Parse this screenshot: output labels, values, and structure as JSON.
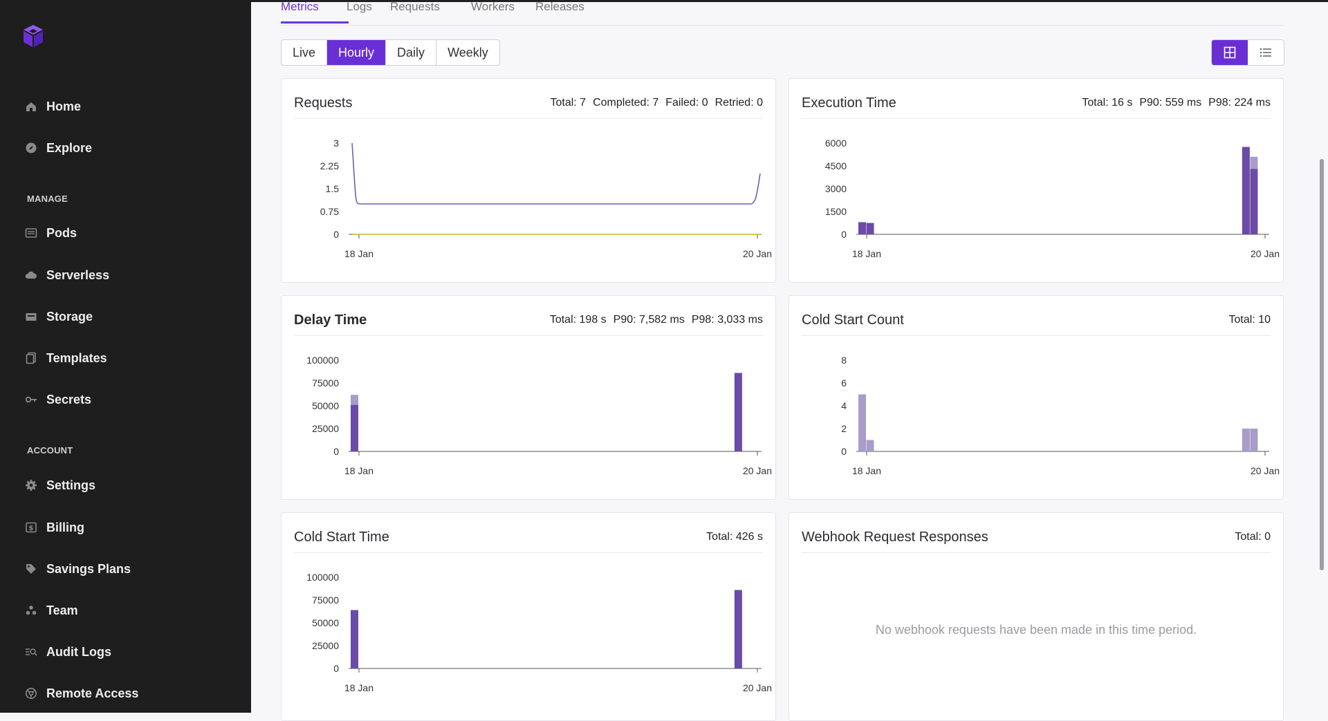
{
  "colors": {
    "accent": "#6a2fd4",
    "bar": "#6b4aa8",
    "bar_light": "#a89cc8",
    "line_requests": "#6b5fb5",
    "line_failed": "#c9b21d"
  },
  "sidebar": {
    "logo_icon": "cube-logo-icon",
    "top_items": [
      {
        "label": "Home",
        "icon": "home-icon"
      },
      {
        "label": "Explore",
        "icon": "compass-icon"
      }
    ],
    "manage_label": "MANAGE",
    "manage_items": [
      {
        "label": "Pods",
        "icon": "pods-icon"
      },
      {
        "label": "Serverless",
        "icon": "cloud-icon"
      },
      {
        "label": "Storage",
        "icon": "storage-icon"
      },
      {
        "label": "Templates",
        "icon": "templates-icon"
      },
      {
        "label": "Secrets",
        "icon": "key-icon"
      }
    ],
    "account_label": "ACCOUNT",
    "account_items": [
      {
        "label": "Settings",
        "icon": "gear-icon"
      },
      {
        "label": "Billing",
        "icon": "billing-icon"
      },
      {
        "label": "Savings Plans",
        "icon": "tag-icon"
      },
      {
        "label": "Team",
        "icon": "team-icon"
      },
      {
        "label": "Audit Logs",
        "icon": "audit-logs-icon"
      },
      {
        "label": "Remote Access",
        "icon": "remote-access-icon"
      }
    ]
  },
  "tabs": [
    "Metrics",
    "Logs",
    "Requests",
    "Workers",
    "Releases"
  ],
  "active_tab": "Metrics",
  "range": {
    "options": [
      "Live",
      "Hourly",
      "Daily",
      "Weekly"
    ],
    "selected": "Hourly"
  },
  "view_toggle": {
    "grid_icon": "grid-view-icon",
    "list_icon": "list-view-icon",
    "selected": "grid"
  },
  "cards": {
    "requests": {
      "title": "Requests",
      "stats": [
        "Total: 7",
        "Completed: 7",
        "Failed: 0",
        "Retried: 0"
      ]
    },
    "execution": {
      "title": "Execution Time",
      "stats": [
        "Total: 16 s",
        "P90: 559 ms",
        "P98: 224 ms"
      ]
    },
    "delay": {
      "title": "Delay Time",
      "stats": [
        "Total: 198 s",
        "P90: 7,582 ms",
        "P98: 3,033 ms"
      ]
    },
    "coldcount": {
      "title": "Cold Start Count",
      "stats": [
        "Total: 10"
      ]
    },
    "coldtime": {
      "title": "Cold Start Time",
      "stats": [
        "Total: 426 s"
      ]
    },
    "webhook": {
      "title": "Webhook Request Responses",
      "stats": [
        "Total: 0"
      ],
      "empty_message": "No webhook requests have been made in this time period."
    }
  },
  "chart_data": [
    {
      "id": "requests",
      "type": "line",
      "x_ticks": [
        "18 Jan",
        "20 Jan"
      ],
      "y_ticks": [
        "0",
        "0.75",
        "1.5",
        "2.25",
        "3"
      ],
      "ylim": [
        0,
        3
      ],
      "series": [
        {
          "values_shape": "spike-flat-spike",
          "values": [
            3,
            1,
            1,
            2
          ]
        },
        {
          "values_shape": "flat",
          "values": [
            0,
            0
          ]
        }
      ]
    },
    {
      "id": "execution",
      "type": "bar",
      "x_ticks": [
        "18 Jan",
        "20 Jan"
      ],
      "y_ticks": [
        "0",
        "1500",
        "3000",
        "4500",
        "6000"
      ],
      "ylim": [
        0,
        6000
      ],
      "bars": [
        {
          "pos": 0.0,
          "value": 800
        },
        {
          "pos": 0.02,
          "value": 750
        },
        {
          "pos": 0.96,
          "value": 5750
        },
        {
          "pos": 0.98,
          "value": 4300,
          "value_light": 5100
        }
      ]
    },
    {
      "id": "delay",
      "type": "bar",
      "x_ticks": [
        "18 Jan",
        "20 Jan"
      ],
      "y_ticks": [
        "0",
        "25000",
        "50000",
        "75000",
        "100000"
      ],
      "ylim": [
        0,
        100000
      ],
      "bars": [
        {
          "pos": 0.0,
          "value": 51000,
          "value_light": 62000
        },
        {
          "pos": 0.96,
          "value": 86000
        }
      ]
    },
    {
      "id": "coldcount",
      "type": "bar",
      "x_ticks": [
        "18 Jan",
        "20 Jan"
      ],
      "y_ticks": [
        "0",
        "2",
        "4",
        "6",
        "8"
      ],
      "ylim": [
        0,
        8
      ],
      "light": true,
      "bars": [
        {
          "pos": 0.0,
          "value": 5
        },
        {
          "pos": 0.02,
          "value": 1
        },
        {
          "pos": 0.96,
          "value": 2
        },
        {
          "pos": 0.98,
          "value": 2
        }
      ]
    },
    {
      "id": "coldtime",
      "type": "bar",
      "x_ticks": [
        "18 Jan",
        "20 Jan"
      ],
      "y_ticks": [
        "0",
        "25000",
        "50000",
        "75000",
        "100000"
      ],
      "ylim": [
        0,
        100000
      ],
      "bars": [
        {
          "pos": 0.0,
          "value": 64000
        },
        {
          "pos": 0.96,
          "value": 86000
        }
      ]
    }
  ]
}
